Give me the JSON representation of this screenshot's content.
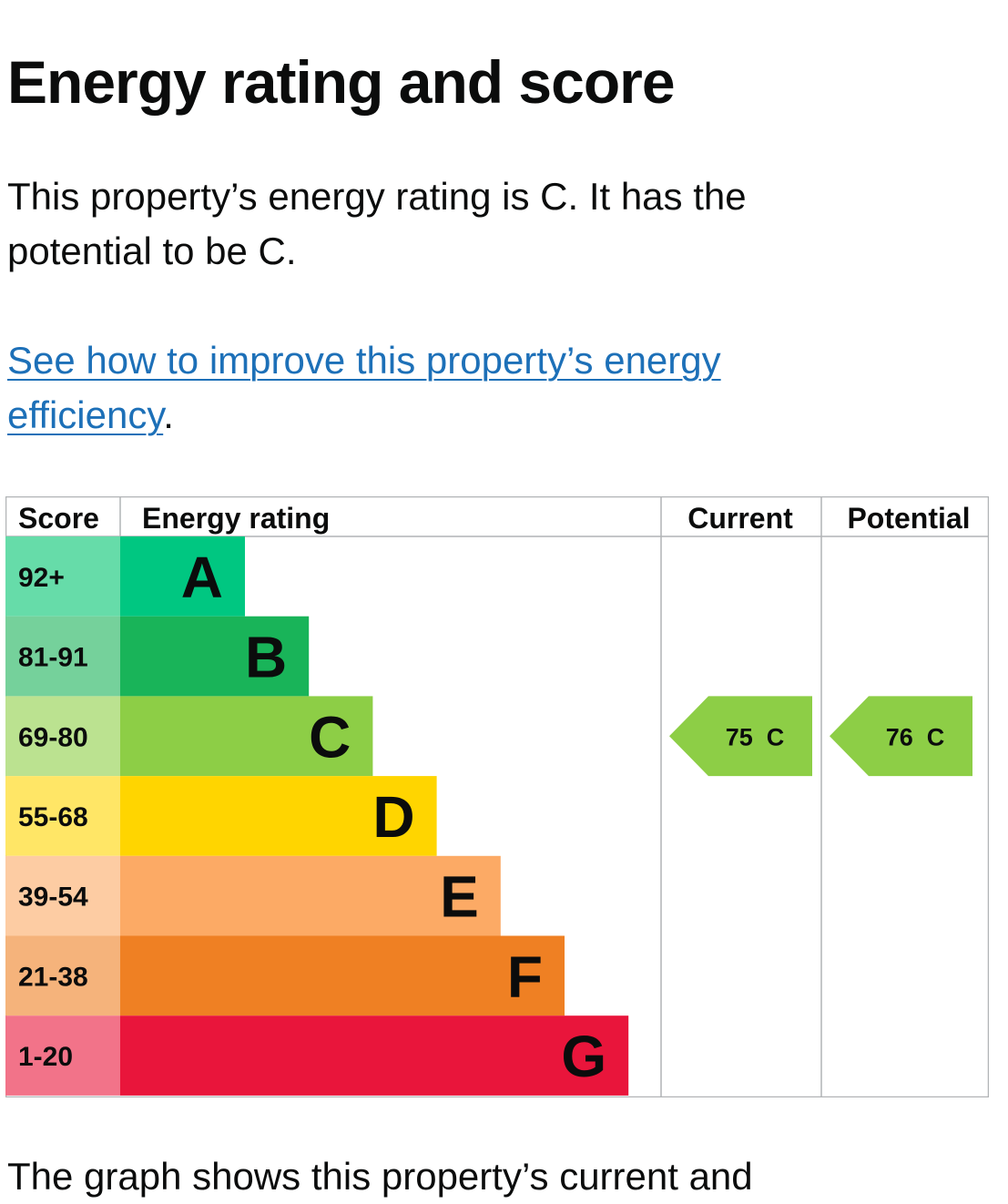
{
  "page": {
    "title": "Energy rating and score",
    "intro": "This property’s energy rating is C. It has the potential to be C.",
    "link_text": "See how to improve this property’s energy efficiency",
    "link_suffix": ".",
    "bottom_text": "The graph shows this property’s current and"
  },
  "chart_data": {
    "type": "bar",
    "headers": {
      "score": "Score",
      "rating": "Energy rating",
      "current": "Current",
      "potential": "Potential"
    },
    "bands": [
      {
        "score": "92+",
        "letter": "A",
        "color": "#00c781",
        "score_bg": "#66dca9"
      },
      {
        "score": "81-91",
        "letter": "B",
        "color": "#19b459",
        "score_bg": "#75d19b"
      },
      {
        "score": "69-80",
        "letter": "C",
        "color": "#8dce46",
        "score_bg": "#bbe290"
      },
      {
        "score": "55-68",
        "letter": "D",
        "color": "#ffd500",
        "score_bg": "#ffe666"
      },
      {
        "score": "39-54",
        "letter": "E",
        "color": "#fcaa65",
        "score_bg": "#fdcca3"
      },
      {
        "score": "21-38",
        "letter": "F",
        "color": "#ef8023",
        "score_bg": "#f5b37b"
      },
      {
        "score": "1-20",
        "letter": "G",
        "color": "#e9153b",
        "score_bg": "#f27389"
      }
    ],
    "current": {
      "score": 75,
      "letter": "C",
      "label": "75  C"
    },
    "potential": {
      "score": 76,
      "letter": "C",
      "label": "76  C"
    }
  }
}
